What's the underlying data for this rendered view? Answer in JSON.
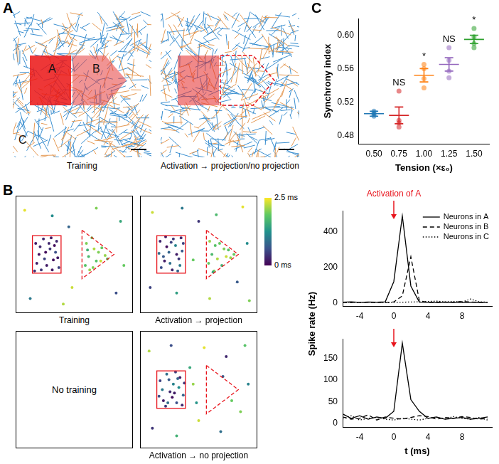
{
  "diagram": {
    "panel": "A",
    "images": [
      {
        "caption": "Training",
        "labels": [
          "A",
          "B",
          "C"
        ]
      },
      {
        "caption": "Activation → projection/no projection"
      }
    ]
  },
  "chart_data": [
    {
      "type": "scatter",
      "panel": "B",
      "caption": "Training",
      "xlim": [
        0,
        100
      ],
      "ylim": [
        0,
        100
      ],
      "tick_labels": false,
      "grid": false,
      "colorbar": {
        "range": [
          0,
          2.5
        ],
        "ticks": [
          {
            "value": 2.5,
            "label": "2.5 ms"
          },
          {
            "value": 0,
            "label": "0 ms"
          }
        ]
      },
      "points": [
        [
          15,
          60,
          0.2
        ],
        [
          18,
          50,
          0.1
        ],
        [
          22,
          64,
          0.3
        ],
        [
          25,
          40,
          0.2
        ],
        [
          28,
          55,
          0.4
        ],
        [
          31,
          45,
          0.1
        ],
        [
          34,
          62,
          0.3
        ],
        [
          36,
          38,
          0.5
        ],
        [
          16,
          42,
          0.2
        ],
        [
          20,
          36,
          0.4
        ],
        [
          24,
          52,
          0.1
        ],
        [
          27,
          60,
          0.3
        ],
        [
          30,
          36,
          0.2
        ],
        [
          33,
          52,
          0.6
        ],
        [
          35,
          47,
          0.2
        ],
        [
          19,
          57,
          0.3
        ],
        [
          23,
          46,
          0.5
        ],
        [
          29,
          65,
          0.2
        ],
        [
          14,
          35,
          0.4
        ],
        [
          32,
          58,
          0.1
        ],
        [
          60,
          40,
          1.8
        ],
        [
          61,
          60,
          2.0
        ],
        [
          63,
          48,
          1.7
        ],
        [
          64,
          36,
          2.1
        ],
        [
          66,
          65,
          1.9
        ],
        [
          68,
          55,
          2.2
        ],
        [
          70,
          44,
          1.8
        ],
        [
          72,
          52,
          2.0
        ],
        [
          74,
          44,
          2.3
        ],
        [
          75,
          56,
          1.9
        ],
        [
          78,
          49,
          2.1
        ],
        [
          80,
          46,
          1.8
        ],
        [
          62,
          54,
          1.6
        ],
        [
          67,
          38,
          2.0
        ],
        [
          5,
          90,
          2.4
        ],
        [
          30,
          85,
          1.2
        ],
        [
          45,
          75,
          0.8
        ],
        [
          70,
          92,
          2.0
        ],
        [
          92,
          80,
          1.5
        ],
        [
          48,
          20,
          2.3
        ],
        [
          10,
          10,
          1.0
        ],
        [
          88,
          15,
          0.6
        ],
        [
          40,
          5,
          2.2
        ],
        [
          95,
          40,
          1.9
        ]
      ]
    },
    {
      "type": "scatter",
      "caption": "Activation → projection",
      "xlim": [
        0,
        100
      ],
      "ylim": [
        0,
        100
      ],
      "tick_labels": false,
      "grid": false,
      "points": [
        [
          15,
          62,
          0.3
        ],
        [
          18,
          48,
          0.7
        ],
        [
          21,
          57,
          0.1
        ],
        [
          24,
          42,
          0.9
        ],
        [
          27,
          64,
          0.4
        ],
        [
          30,
          50,
          0.2
        ],
        [
          33,
          40,
          1.0
        ],
        [
          36,
          60,
          0.5
        ],
        [
          16,
          38,
          0.6
        ],
        [
          20,
          66,
          0.2
        ],
        [
          23,
          52,
          0.8
        ],
        [
          26,
          36,
          0.3
        ],
        [
          29,
          58,
          1.1
        ],
        [
          32,
          46,
          0.4
        ],
        [
          35,
          53,
          0.7
        ],
        [
          19,
          44,
          0.2
        ],
        [
          25,
          61,
          0.5
        ],
        [
          31,
          35,
          0.8
        ],
        [
          14,
          51,
          0.9
        ],
        [
          34,
          65,
          0.3
        ],
        [
          59,
          42,
          1.9
        ],
        [
          60,
          62,
          2.1
        ],
        [
          62,
          50,
          1.7
        ],
        [
          64,
          35,
          2.0
        ],
        [
          65,
          58,
          1.8
        ],
        [
          67,
          46,
          2.2
        ],
        [
          69,
          60,
          1.9
        ],
        [
          71,
          40,
          1.6
        ],
        [
          73,
          55,
          2.0
        ],
        [
          75,
          48,
          2.3
        ],
        [
          77,
          54,
          1.8
        ],
        [
          79,
          47,
          2.1
        ],
        [
          82,
          50,
          1.9
        ],
        [
          63,
          34,
          1.5
        ],
        [
          8,
          88,
          2.3
        ],
        [
          35,
          92,
          1.0
        ],
        [
          50,
          80,
          0.4
        ],
        [
          66,
          86,
          1.7
        ],
        [
          90,
          93,
          2.4
        ],
        [
          94,
          60,
          1.2
        ],
        [
          85,
          25,
          0.7
        ],
        [
          60,
          10,
          2.2
        ],
        [
          30,
          15,
          1.4
        ],
        [
          6,
          20,
          0.5
        ],
        [
          45,
          45,
          1.9
        ],
        [
          96,
          8,
          2.0
        ]
      ]
    },
    {
      "type": "scatter",
      "text": "No training",
      "points": []
    },
    {
      "type": "scatter",
      "caption": "Activation → no projection",
      "xlim": [
        0,
        100
      ],
      "ylim": [
        0,
        100
      ],
      "tick_labels": false,
      "grid": false,
      "points": [
        [
          15,
          58,
          0.5
        ],
        [
          18,
          40,
          0.2
        ],
        [
          21,
          64,
          0.9
        ],
        [
          24,
          48,
          0.3
        ],
        [
          27,
          55,
          1.1
        ],
        [
          30,
          38,
          0.6
        ],
        [
          33,
          61,
          0.2
        ],
        [
          36,
          45,
          0.8
        ],
        [
          17,
          50,
          1.0
        ],
        [
          20,
          35,
          0.4
        ],
        [
          23,
          59,
          0.7
        ],
        [
          26,
          43,
          0.1
        ],
        [
          29,
          66,
          0.5
        ],
        [
          32,
          52,
          1.2
        ],
        [
          35,
          36,
          0.3
        ],
        [
          14,
          44,
          0.6
        ],
        [
          22,
          38,
          0.9
        ],
        [
          28,
          47,
          0.2
        ],
        [
          31,
          60,
          0.8
        ],
        [
          37,
          56,
          0.4
        ],
        [
          5,
          85,
          2.2
        ],
        [
          25,
          90,
          0.6
        ],
        [
          42,
          70,
          1.5
        ],
        [
          55,
          88,
          2.4
        ],
        [
          75,
          80,
          0.3
        ],
        [
          92,
          90,
          1.8
        ],
        [
          95,
          55,
          1.1
        ],
        [
          88,
          30,
          2.0
        ],
        [
          70,
          12,
          0.9
        ],
        [
          50,
          22,
          2.3
        ],
        [
          30,
          8,
          1.6
        ],
        [
          8,
          15,
          0.4
        ],
        [
          45,
          55,
          2.1
        ],
        [
          48,
          38,
          1.3
        ],
        [
          72,
          62,
          0.7
        ],
        [
          80,
          40,
          1.9
        ]
      ]
    },
    {
      "type": "line",
      "y_label": "Spike rate (Hz)",
      "legend": "upper right",
      "grid": false,
      "x": [
        -6,
        -5,
        -4,
        -3,
        -2,
        -1,
        0,
        1,
        2,
        3,
        4,
        5,
        6,
        7,
        8,
        9,
        10,
        11
      ],
      "xlim": [
        -6,
        11.5
      ],
      "xticks": [
        -4,
        0,
        4,
        8
      ],
      "ylim": [
        -20,
        520
      ],
      "yticks": [
        0,
        200,
        400
      ],
      "annotations": [
        {
          "x": 0,
          "text": "Activation of A",
          "color": "#e8141c"
        }
      ],
      "series": [
        {
          "name": "Neurons in A",
          "color": "#000000",
          "line_style": "solid",
          "values": [
            4,
            6,
            3,
            5,
            4,
            6,
            120,
            490,
            95,
            4,
            3,
            2,
            3,
            4,
            2,
            3,
            4,
            3
          ]
        },
        {
          "name": "Neurons in B",
          "color": "#000000",
          "line_style": "dashed",
          "values": [
            3,
            2,
            4,
            3,
            2,
            3,
            5,
            40,
            260,
            12,
            3,
            4,
            5,
            3,
            8,
            5,
            3,
            4
          ]
        },
        {
          "name": "Neurons in C",
          "color": "#000000",
          "line_style": "dotted",
          "values": [
            2,
            3,
            2,
            4,
            3,
            2,
            3,
            4,
            5,
            6,
            8,
            10,
            6,
            8,
            5,
            22,
            6,
            4
          ]
        }
      ]
    },
    {
      "type": "line",
      "x_label": "t (ms)",
      "grid": false,
      "x": [
        -6,
        -5,
        -4,
        -3,
        -2,
        -1,
        0,
        1,
        2,
        3,
        4,
        5,
        6,
        7,
        8,
        9,
        10,
        11
      ],
      "xlim": [
        -6,
        11.5
      ],
      "xticks": [
        -4,
        0,
        4,
        8
      ],
      "ylim": [
        -8,
        195
      ],
      "yticks": [
        0,
        50,
        100,
        150
      ],
      "annotations": [
        {
          "x": 0,
          "color": "#e8141c"
        }
      ],
      "series": [
        {
          "color": "#000000",
          "line_style": "solid",
          "values": [
            22,
            12,
            18,
            10,
            15,
            12,
            28,
            185,
            55,
            28,
            12,
            15,
            10,
            12,
            14,
            10,
            12,
            15
          ]
        },
        {
          "color": "#000000",
          "line_style": "dashed",
          "values": [
            15,
            10,
            12,
            20,
            8,
            15,
            12,
            10,
            14,
            18,
            16,
            10,
            14,
            12,
            16,
            14,
            10,
            12
          ]
        },
        {
          "color": "#000000",
          "line_style": "dotted",
          "values": [
            10,
            18,
            8,
            12,
            14,
            10,
            8,
            12,
            10,
            8,
            12,
            14,
            10,
            16,
            12,
            10,
            14,
            8
          ]
        }
      ]
    },
    {
      "type": "scatter",
      "panel": "C",
      "x_label": "Tension (×ε₀)",
      "y_label": "Synchrony index",
      "grid": false,
      "xlim": [
        0.35,
        1.65
      ],
      "xticks": [
        {
          "value": 0.5,
          "label": "0.50"
        },
        {
          "value": 0.75,
          "label": "0.75"
        },
        {
          "value": 1,
          "label": "1.00"
        },
        {
          "value": 1.25,
          "label": "1.25"
        },
        {
          "value": 1.5,
          "label": "1.50"
        }
      ],
      "ylim": [
        0.47,
        0.62
      ],
      "yticks": [
        0.48,
        0.52,
        0.56,
        {
          "value": 0.6,
          "label": "0.60"
        }
      ],
      "groups": [
        {
          "x": 0.5,
          "color": "#1f77b4",
          "values": [
            0.503,
            0.505,
            0.507,
            0.509
          ],
          "mean": 0.506,
          "sem": 0.003
        },
        {
          "x": 0.75,
          "color": "#d62728",
          "values": [
            0.49,
            0.495,
            0.498,
            0.533
          ],
          "mean": 0.504,
          "sem": 0.01
        },
        {
          "x": 1,
          "color": "#ff7f0e",
          "values": [
            0.537,
            0.548,
            0.56,
            0.565
          ],
          "mean": 0.552,
          "sem": 0.008
        },
        {
          "x": 1.25,
          "color": "#9467bd",
          "values": [
            0.549,
            0.557,
            0.57,
            0.585
          ],
          "mean": 0.565,
          "sem": 0.008
        },
        {
          "x": 1.5,
          "color": "#2ca02c",
          "values": [
            0.585,
            0.59,
            0.598,
            0.608
          ],
          "mean": 0.595,
          "sem": 0.005
        }
      ],
      "annotations": [
        {
          "x": 0.75,
          "text": "NS"
        },
        {
          "x": 1,
          "text": "*"
        },
        {
          "x": 1.25,
          "text": "NS"
        },
        {
          "x": 1.5,
          "text": "*"
        }
      ]
    }
  ]
}
